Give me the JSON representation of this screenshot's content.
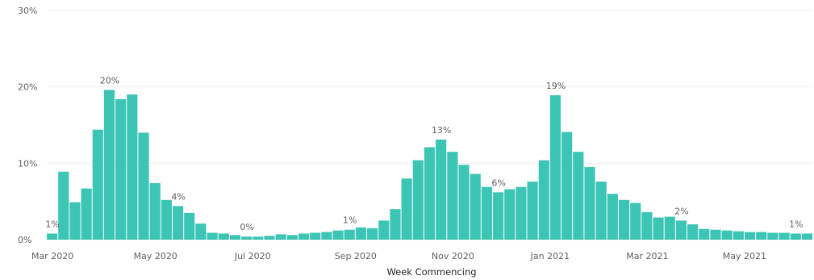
{
  "chart_data": {
    "type": "bar",
    "title": "",
    "xlabel": "Week Commencing",
    "ylabel": "",
    "ylim": [
      0,
      30
    ],
    "yticks": [
      {
        "value": 0,
        "label": "0%"
      },
      {
        "value": 10,
        "label": "10%"
      },
      {
        "value": 20,
        "label": "20%"
      },
      {
        "value": 30,
        "label": "30%"
      }
    ],
    "grid": true,
    "color": "#3cc5b4",
    "x_tick_labels": [
      {
        "label": "Mar 2020",
        "at_week": 0
      },
      {
        "label": "May 2020",
        "at_week": 9
      },
      {
        "label": "Jul 2020",
        "at_week": 17.5
      },
      {
        "label": "Sep 2020",
        "at_week": 26.5
      },
      {
        "label": "Nov 2020",
        "at_week": 35
      },
      {
        "label": "Jan 2021",
        "at_week": 43.5
      },
      {
        "label": "Mar 2021",
        "at_week": 52
      },
      {
        "label": "May 2021",
        "at_week": 60.5
      }
    ],
    "values": [
      0.8,
      8.9,
      4.9,
      6.7,
      14.4,
      19.6,
      18.4,
      19.0,
      14.0,
      7.4,
      5.2,
      4.4,
      3.5,
      2.1,
      0.9,
      0.8,
      0.6,
      0.4,
      0.4,
      0.5,
      0.7,
      0.6,
      0.8,
      0.9,
      1.0,
      1.2,
      1.3,
      1.6,
      1.5,
      2.5,
      4.0,
      8.0,
      10.4,
      12.1,
      13.1,
      11.5,
      9.8,
      8.6,
      6.9,
      6.2,
      6.6,
      6.9,
      7.6,
      10.4,
      18.9,
      14.1,
      11.5,
      9.5,
      7.6,
      6.0,
      5.2,
      4.8,
      3.6,
      2.9,
      3.0,
      2.5,
      2.0,
      1.4,
      1.3,
      1.2,
      1.1,
      1.0,
      1.0,
      0.9,
      0.9,
      0.8,
      0.8
    ],
    "data_labels": [
      {
        "text": "1%",
        "week": 0
      },
      {
        "text": "20%",
        "week": 5
      },
      {
        "text": "4%",
        "week": 11
      },
      {
        "text": "0%",
        "week": 17
      },
      {
        "text": "1%",
        "week": 26
      },
      {
        "text": "13%",
        "week": 34
      },
      {
        "text": "6%",
        "week": 39
      },
      {
        "text": "19%",
        "week": 44
      },
      {
        "text": "2%",
        "week": 55
      },
      {
        "text": "1%",
        "week": 65
      }
    ]
  }
}
